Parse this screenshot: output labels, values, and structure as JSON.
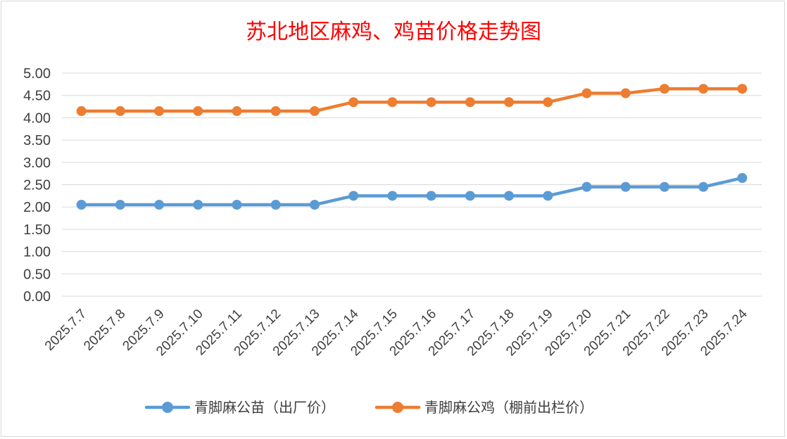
{
  "chart_data": {
    "type": "line",
    "title": "苏北地区麻鸡、鸡苗价格走势图",
    "xlabel": "",
    "ylabel": "",
    "ylim": [
      0,
      5
    ],
    "yticks": [
      "0.00",
      "0.50",
      "1.00",
      "1.50",
      "2.00",
      "2.50",
      "3.00",
      "3.50",
      "4.00",
      "4.50",
      "5.00"
    ],
    "categories": [
      "2025.7.7",
      "2025.7.8",
      "2025.7.9",
      "2025.7.10",
      "2025.7.11",
      "2025.7.12",
      "2025.7.13",
      "2025.7.14",
      "2025.7.15",
      "2025.7.16",
      "2025.7.17",
      "2025.7.18",
      "2025.7.19",
      "2025.7.20",
      "2025.7.21",
      "2025.7.22",
      "2025.7.23",
      "2025.7.24"
    ],
    "series": [
      {
        "name": "青脚麻公苗（出厂价）",
        "color": "#5b9bd5",
        "values": [
          2.05,
          2.05,
          2.05,
          2.05,
          2.05,
          2.05,
          2.05,
          2.25,
          2.25,
          2.25,
          2.25,
          2.25,
          2.25,
          2.45,
          2.45,
          2.45,
          2.45,
          2.65
        ]
      },
      {
        "name": "青脚麻公鸡（棚前出栏价）",
        "color": "#ed7d31",
        "values": [
          4.15,
          4.15,
          4.15,
          4.15,
          4.15,
          4.15,
          4.15,
          4.35,
          4.35,
          4.35,
          4.35,
          4.35,
          4.35,
          4.55,
          4.55,
          4.65,
          4.65,
          4.65
        ]
      }
    ],
    "grid": true,
    "legend": "bottom"
  }
}
